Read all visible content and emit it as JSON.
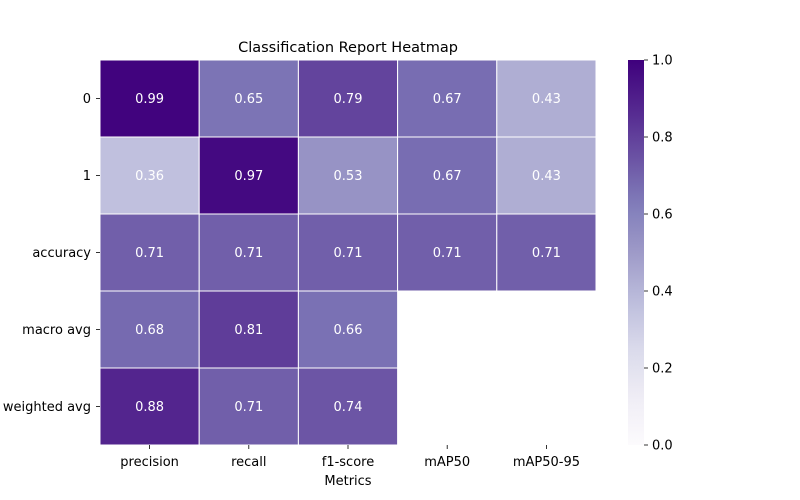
{
  "chart_data": {
    "type": "heatmap",
    "title": "Classification Report Heatmap",
    "xlabel": "Metrics",
    "ylabel": "",
    "columns": [
      "precision",
      "recall",
      "f1-score",
      "mAP50",
      "mAP50-95"
    ],
    "rows": [
      "0",
      "1",
      "accuracy",
      "macro avg",
      "weighted avg"
    ],
    "values": [
      [
        0.99,
        0.65,
        0.79,
        0.67,
        0.43
      ],
      [
        0.36,
        0.97,
        0.53,
        0.67,
        0.43
      ],
      [
        0.71,
        0.71,
        0.71,
        0.71,
        0.71
      ],
      [
        0.68,
        0.81,
        0.66,
        null,
        null
      ],
      [
        0.88,
        0.71,
        0.74,
        null,
        null
      ]
    ],
    "value_format": "2 decimals",
    "colorscale": "Purples",
    "colorbar": {
      "range": [
        0.0,
        1.0
      ],
      "ticks": [
        0.0,
        0.2,
        0.4,
        0.6,
        0.8,
        1.0
      ],
      "tick_labels": [
        "0.0",
        "0.2",
        "0.4",
        "0.6",
        "0.8",
        "1.0"
      ]
    },
    "cell_border_color": "#ffffff",
    "missing_cells": "blank"
  }
}
